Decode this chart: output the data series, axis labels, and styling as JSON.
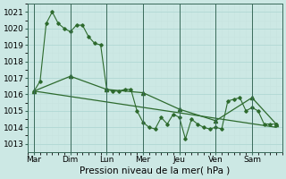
{
  "xlabel": "Pression niveau de la mer( hPa )",
  "bg_color": "#cce8e4",
  "grid_color_major": "#b0d8d4",
  "grid_color_minor": "#c8e4e0",
  "line_color": "#2d6a2d",
  "ylim": [
    1012.5,
    1021.5
  ],
  "yticks": [
    1013,
    1014,
    1015,
    1016,
    1017,
    1018,
    1019,
    1020,
    1021
  ],
  "day_labels": [
    "Mar",
    "Dim",
    "Lun",
    "Mer",
    "Jeu",
    "Ven",
    "Sam"
  ],
  "day_positions": [
    0,
    6,
    12,
    18,
    24,
    30,
    36
  ],
  "xlim": [
    -1,
    41
  ],
  "series1_x": [
    0,
    1,
    2,
    3,
    4,
    5,
    6,
    7,
    8,
    9,
    10,
    11,
    12,
    13,
    14,
    15,
    16,
    17,
    18,
    19,
    20,
    21,
    22,
    23,
    24,
    25,
    26,
    27,
    28,
    29,
    30,
    31,
    32,
    33,
    34,
    35,
    36,
    37,
    38,
    39,
    40
  ],
  "series1_y": [
    1016.2,
    1016.8,
    1020.3,
    1021.0,
    1020.3,
    1020.0,
    1019.8,
    1020.2,
    1020.2,
    1019.5,
    1019.1,
    1019.0,
    1016.3,
    1016.2,
    1016.2,
    1016.3,
    1016.3,
    1015.0,
    1014.3,
    1014.0,
    1013.9,
    1014.6,
    1014.2,
    1014.8,
    1014.6,
    1013.3,
    1014.5,
    1014.2,
    1014.0,
    1013.9,
    1014.0,
    1013.9,
    1015.6,
    1015.7,
    1015.8,
    1015.0,
    1015.2,
    1015.0,
    1014.2,
    1014.2,
    1014.2
  ],
  "series2_x": [
    0,
    6,
    12,
    18,
    24,
    30,
    36,
    40
  ],
  "series2_y": [
    1016.2,
    1017.1,
    1016.3,
    1016.1,
    1015.1,
    1014.4,
    1015.8,
    1014.2
  ],
  "trend_x": [
    0,
    40
  ],
  "trend_y": [
    1016.2,
    1014.0
  ]
}
